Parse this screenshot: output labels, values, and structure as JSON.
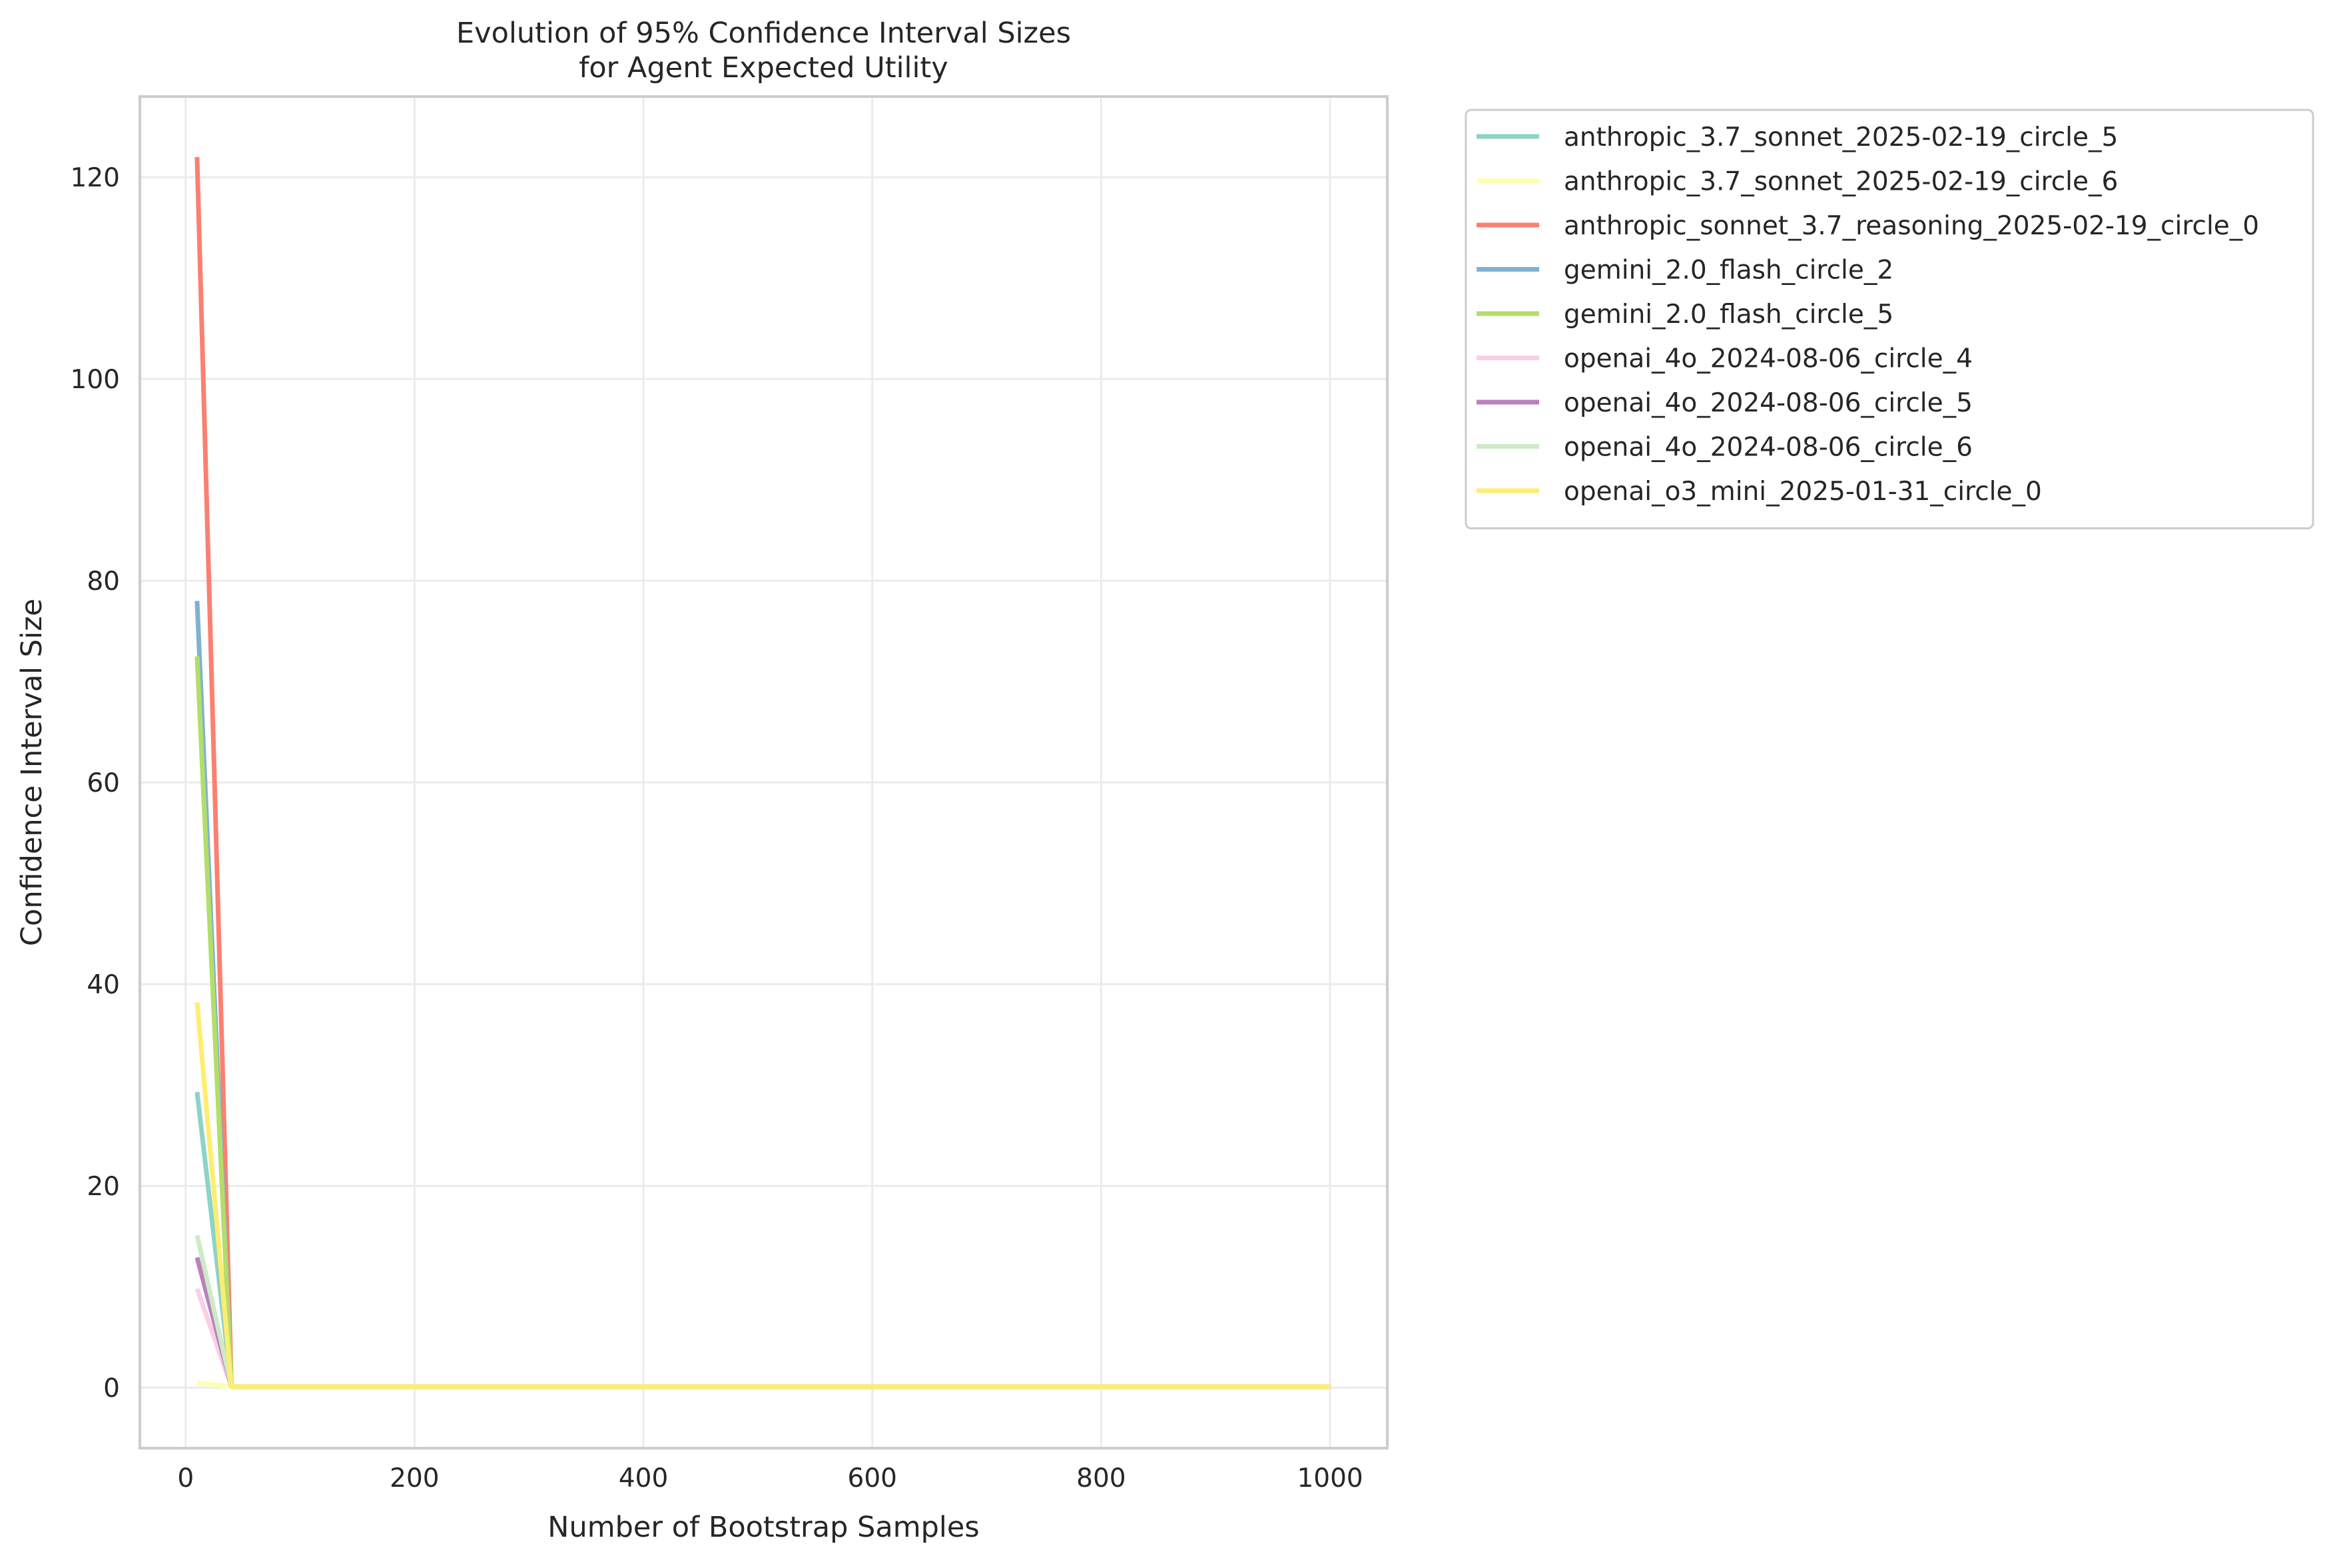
{
  "chart_data": {
    "type": "line",
    "title": "Evolution of 95% Confidence Interval Sizes\nfor Agent Expected Utility",
    "xlabel": "Number of Bootstrap Samples",
    "ylabel": "Confidence Interval Size",
    "xlim": [
      -40,
      1050
    ],
    "ylim": [
      -6,
      128
    ],
    "x_ticks": [
      0,
      200,
      400,
      600,
      800,
      1000
    ],
    "y_ticks": [
      0,
      20,
      40,
      60,
      80,
      100,
      120
    ],
    "grid": true,
    "legend_position": "outside-right-top",
    "x": [
      10,
      40,
      1000
    ],
    "series": [
      {
        "name": "anthropic_3.7_sonnet_2025-02-19_circle_5",
        "color": "#8dd3c7",
        "values": [
          29.3,
          0.1,
          0.1
        ]
      },
      {
        "name": "anthropic_3.7_sonnet_2025-02-19_circle_6",
        "color": "#ffffb3",
        "values": [
          0.5,
          0.1,
          0.1
        ]
      },
      {
        "name": "anthropic_sonnet_3.7_reasoning_2025-02-19_circle_0",
        "color": "#fb8072",
        "values": [
          122,
          0.1,
          0.1
        ]
      },
      {
        "name": "gemini_2.0_flash_circle_2",
        "color": "#80b1d3",
        "values": [
          78,
          0.1,
          0.1
        ]
      },
      {
        "name": "gemini_2.0_flash_circle_5",
        "color": "#b3de69",
        "values": [
          72.5,
          0.1,
          0.1
        ]
      },
      {
        "name": "openai_4o_2024-08-06_circle_4",
        "color": "#fccde5",
        "values": [
          9.8,
          0.1,
          0.1
        ]
      },
      {
        "name": "openai_4o_2024-08-06_circle_5",
        "color": "#bc80bd",
        "values": [
          12.9,
          0.1,
          0.1
        ]
      },
      {
        "name": "openai_4o_2024-08-06_circle_6",
        "color": "#ccebc5",
        "values": [
          15.1,
          0.1,
          0.1
        ]
      },
      {
        "name": "openai_o3_mini_2025-01-31_circle_0",
        "color": "#ffed6f",
        "values": [
          38.2,
          0.1,
          0.1
        ]
      }
    ]
  }
}
